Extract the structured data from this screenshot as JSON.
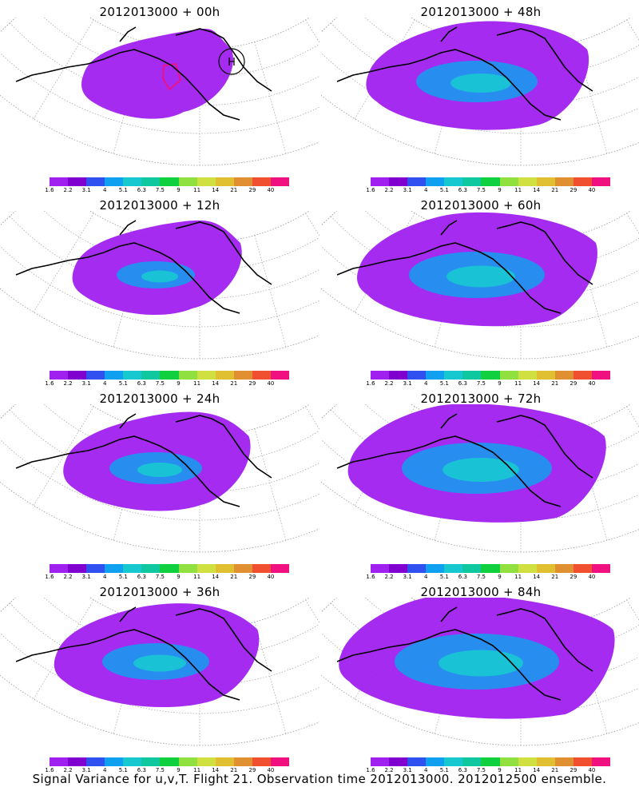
{
  "panels": [
    {
      "title": "2012013000  +  00h",
      "level": 0,
      "marker": "H"
    },
    {
      "title": "2012013000  +  48h",
      "level": 4,
      "marker": ""
    },
    {
      "title": "2012013000  +  12h",
      "level": 1,
      "marker": ""
    },
    {
      "title": "2012013000  +  60h",
      "level": 5,
      "marker": ""
    },
    {
      "title": "2012013000  +  24h",
      "level": 2,
      "marker": ""
    },
    {
      "title": "2012013000  +  72h",
      "level": 6,
      "marker": ""
    },
    {
      "title": "2012013000  +  36h",
      "level": 3,
      "marker": ""
    },
    {
      "title": "2012013000  +  84h",
      "level": 7,
      "marker": ""
    }
  ],
  "colorbar": {
    "labels": [
      "1.6",
      "2.2",
      "3.1",
      "4",
      "5.1",
      "6.3",
      "7.5",
      "9",
      "11",
      "14",
      "21",
      "29",
      "40"
    ],
    "colors": [
      "#a020f0",
      "#8000d0",
      "#3050f0",
      "#10a0f0",
      "#18c8d0",
      "#10c8a0",
      "#10d040",
      "#90e040",
      "#d0e040",
      "#e0c030",
      "#e09030",
      "#f05030",
      "#f01080"
    ]
  },
  "caption": "Signal Variance for u,v,T. Flight 21. Observation time 2012013000. 2012012500 ensemble."
}
